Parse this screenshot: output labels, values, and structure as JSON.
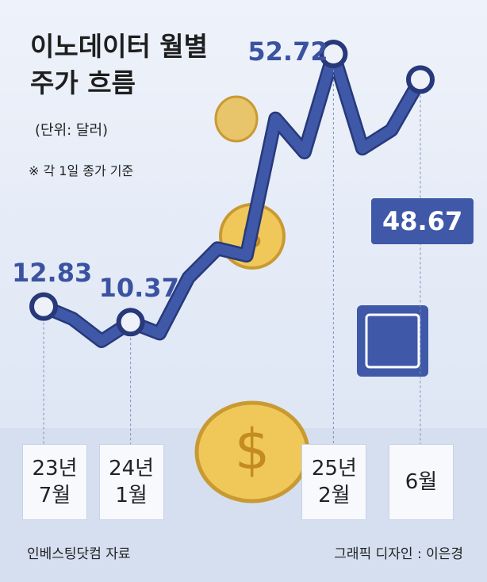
{
  "chart_data": {
    "type": "line",
    "title": "이노데이터 월별 주가 흐름",
    "subtitle": "(단위: 달러)",
    "note": "※ 각 1일 종가 기준",
    "source": "인베스팅닷컴 자료",
    "credit": "그래픽 디자인 : 이은경",
    "categories": [
      "23년 7월",
      null,
      null,
      "24년 1월",
      null,
      null,
      null,
      null,
      null,
      null,
      "25년 2월",
      null,
      null,
      "6월"
    ],
    "series": [
      {
        "color": "#3f58a8",
        "values": [
          12.83,
          10.9,
          7.4,
          10.37,
          8.6,
          17.4,
          22.0,
          20.9,
          42.5,
          37.2,
          52.72,
          37.8,
          40.7,
          48.67
        ]
      }
    ]
  }
}
